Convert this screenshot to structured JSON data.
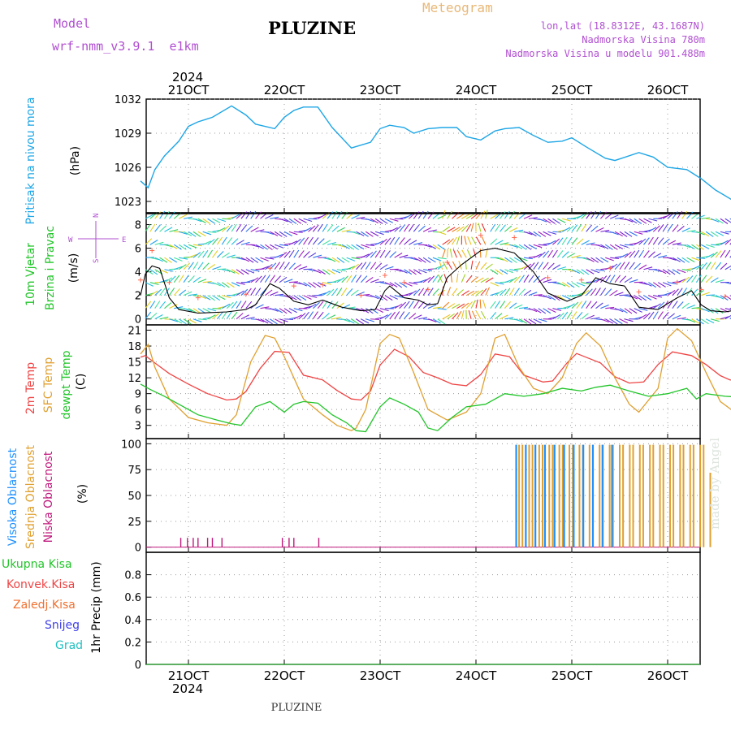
{
  "header": {
    "model_label": "Model",
    "model_name": "wrf-nmm_v3.9.1  e1km",
    "title": "PLUZINE",
    "product": "Meteogram",
    "lonlat": "lon,lat (18.8312E, 43.1687N)",
    "altitude": "Nadmorska Visina 780m",
    "model_altitude": "Nadmorska Visina u modelu 901.488m",
    "footer": "PLUZINE",
    "credit": "made by Angel"
  },
  "colors": {
    "pressure": "#1ea6e6",
    "t2m": "#ef4444",
    "sfc": "#e0a030",
    "dewpt": "#22c52a",
    "high_cloud": "#1e90ff",
    "mid_cloud": "#e0a030",
    "low_cloud": "#c0187c",
    "wind_speed": "#000000"
  },
  "time_axis": {
    "year_label": "2024",
    "top_labels": [
      "21OCT",
      "22OCT",
      "23OCT",
      "24OCT",
      "25OCT",
      "26OCT"
    ],
    "bottom_labels": [
      "21OCT",
      "22OCT",
      "23OCT",
      "24OCT",
      "25OCT",
      "26OCT"
    ]
  },
  "panel_labels": {
    "pressure": {
      "name": "Pritisak na nivou mora",
      "unit": "(hPa)"
    },
    "wind": {
      "line1": "10m Vjetar",
      "line2": "Brzina i Pravac",
      "unit": "(m/s)"
    },
    "compass": {
      "n": "N",
      "s": "S",
      "w": "W",
      "e": "E"
    },
    "temp": {
      "t2m": "2m Temp",
      "sfc": "SFC Temp",
      "dew": "dewpt Temp",
      "unit": "(C)"
    },
    "cloud": {
      "high": "Visoka Oblacnost",
      "mid": "Srednja Oblacnost",
      "low": "Niska Oblacnost",
      "unit": "(%)"
    },
    "precip": {
      "total": "Ukupna Kisa",
      "conv": "Konvek.Kisa",
      "frozen": "Zaledj.Kisa",
      "snow": "Snijeg",
      "grad": "Grad",
      "unit": "1hr Precip (mm)"
    }
  },
  "chart_data": [
    {
      "type": "line",
      "id": "pressure",
      "ylabel": "Pritisak na nivou mora (hPa)",
      "ylim": [
        1022,
        1032
      ],
      "yticks": [
        "1032",
        "1029",
        "1026",
        "1023"
      ],
      "grid": true,
      "series": [
        {
          "name": "Pritisak na nivou mora",
          "x": [
            0,
            0.08,
            0.15,
            0.25,
            0.4,
            0.5,
            0.6,
            0.75,
            0.95,
            1.1,
            1.2,
            1.4,
            1.5,
            1.6,
            1.7,
            1.85,
            2.0,
            2.2,
            2.4,
            2.5,
            2.6,
            2.75,
            2.85,
            3.0,
            3.15,
            3.3,
            3.4,
            3.55,
            3.7,
            3.8,
            3.95,
            4.1,
            4.25,
            4.4,
            4.5,
            4.65,
            4.85,
            4.95,
            5.2,
            5.35,
            5.5,
            5.7,
            5.85,
            6.0,
            6.2,
            6.35,
            6.45,
            6.6,
            6.7
          ],
          "y": [
            1024.8,
            1024.2,
            1025.8,
            1027.0,
            1028.3,
            1029.6,
            1030.0,
            1030.4,
            1031.4,
            1030.6,
            1029.8,
            1029.4,
            1030.4,
            1031.0,
            1031.3,
            1031.3,
            1029.5,
            1027.7,
            1028.2,
            1029.4,
            1029.7,
            1029.5,
            1029.0,
            1029.4,
            1029.5,
            1029.5,
            1028.7,
            1028.4,
            1029.2,
            1029.4,
            1029.5,
            1028.8,
            1028.2,
            1028.3,
            1028.6,
            1027.8,
            1026.8,
            1026.6,
            1027.3,
            1026.9,
            1026.0,
            1025.8,
            1025.0,
            1024.0,
            1023.0,
            1022.9,
            1023.6,
            1024.3,
            1024.6
          ]
        }
      ]
    },
    {
      "type": "line",
      "id": "wind",
      "ylabel": "10m Vjetar Brzina i Pravac (m/s)",
      "ylim": [
        -0.5,
        9
      ],
      "yticks": [
        "8",
        "6",
        "4",
        "2",
        "0"
      ],
      "grid": true,
      "series": [
        {
          "name": "wind speed",
          "x": [
            0,
            0.05,
            0.12,
            0.2,
            0.3,
            0.4,
            0.6,
            0.9,
            1.1,
            1.2,
            1.35,
            1.45,
            1.6,
            1.75,
            1.9,
            2.1,
            2.3,
            2.45,
            2.55,
            2.6,
            2.75,
            2.9,
            3.0,
            3.1,
            3.2,
            3.35,
            3.55,
            3.7,
            3.9,
            4.1,
            4.25,
            4.45,
            4.6,
            4.75,
            4.9,
            5.05,
            5.2,
            5.4,
            5.6,
            5.75,
            5.85,
            5.95,
            6.1,
            6.25,
            6.35,
            6.5,
            6.7
          ],
          "y": [
            2.0,
            3.8,
            4.5,
            4.3,
            1.8,
            0.8,
            0.5,
            0.6,
            0.8,
            1.2,
            3.0,
            2.6,
            1.5,
            1.2,
            1.6,
            1.0,
            0.7,
            0.8,
            2.4,
            2.8,
            1.8,
            1.6,
            1.2,
            1.3,
            3.5,
            4.6,
            5.8,
            6.0,
            5.6,
            4.0,
            2.2,
            1.5,
            2.0,
            3.5,
            3.0,
            2.8,
            1.0,
            0.8,
            1.8,
            2.4,
            1.2,
            0.7,
            0.6,
            0.8,
            1.5,
            2.2,
            2.8
          ]
        }
      ]
    },
    {
      "type": "line",
      "id": "temperature",
      "ylabel": "(C)",
      "ylim": [
        0.5,
        22
      ],
      "yticks": [
        "21",
        "18",
        "15",
        "12",
        "9",
        "6",
        "3"
      ],
      "grid": true,
      "series": [
        {
          "name": "2m Temp",
          "x": [
            0,
            0.05,
            0.15,
            0.3,
            0.5,
            0.7,
            0.9,
            1.0,
            1.1,
            1.25,
            1.4,
            1.55,
            1.7,
            1.9,
            2.05,
            2.2,
            2.3,
            2.4,
            2.5,
            2.65,
            2.8,
            2.95,
            3.1,
            3.25,
            3.4,
            3.55,
            3.7,
            3.85,
            4.0,
            4.2,
            4.3,
            4.45,
            4.55,
            4.8,
            4.95,
            5.1,
            5.25,
            5.4,
            5.55,
            5.75,
            5.9,
            6.05,
            6.15,
            6.3,
            6.5,
            6.7
          ],
          "y": [
            15.9,
            16.2,
            14.8,
            12.8,
            10.8,
            9.0,
            7.8,
            8.0,
            9.4,
            13.8,
            17.0,
            16.8,
            12.5,
            11.6,
            9.6,
            8.0,
            7.8,
            9.5,
            14.4,
            17.4,
            16.0,
            13.0,
            12.0,
            10.8,
            10.5,
            12.6,
            16.5,
            16.0,
            12.5,
            11.2,
            11.4,
            14.8,
            16.6,
            14.8,
            12.2,
            11.0,
            11.2,
            14.5,
            16.9,
            16.2,
            14.5,
            12.4,
            11.6,
            11.2,
            14.5,
            17.2
          ]
        },
        {
          "name": "SFC Temp",
          "x": [
            0,
            0.08,
            0.15,
            0.3,
            0.5,
            0.7,
            0.9,
            1.0,
            1.15,
            1.3,
            1.4,
            1.5,
            1.7,
            1.9,
            2.05,
            2.2,
            2.25,
            2.35,
            2.5,
            2.6,
            2.7,
            2.85,
            3.0,
            3.2,
            3.4,
            3.55,
            3.7,
            3.8,
            3.95,
            4.1,
            4.25,
            4.4,
            4.55,
            4.65,
            4.8,
            4.95,
            5.1,
            5.2,
            5.4,
            5.5,
            5.6,
            5.75,
            5.9,
            6.05,
            6.2,
            6.35,
            6.5,
            6.62,
            6.7
          ],
          "y": [
            16.5,
            18.3,
            14.0,
            8.0,
            4.5,
            3.5,
            3.0,
            5.0,
            15.0,
            20.0,
            19.5,
            16.0,
            8.0,
            5.0,
            3.0,
            2.0,
            2.5,
            6.0,
            18.5,
            20.2,
            19.5,
            13.0,
            6.0,
            4.0,
            5.5,
            9.0,
            19.5,
            20.2,
            14.0,
            10.0,
            9.0,
            12.0,
            18.5,
            20.5,
            18.0,
            12.0,
            7.0,
            5.5,
            10.0,
            19.5,
            21.3,
            19.0,
            13.0,
            7.5,
            5.5,
            9.5,
            19.5,
            21.0,
            20.6
          ]
        },
        {
          "name": "dewpt Temp",
          "x": [
            0,
            0.1,
            0.25,
            0.4,
            0.6,
            0.8,
            0.95,
            1.05,
            1.2,
            1.35,
            1.5,
            1.6,
            1.7,
            1.85,
            2.0,
            2.15,
            2.25,
            2.35,
            2.5,
            2.6,
            2.75,
            2.9,
            3.0,
            3.1,
            3.25,
            3.4,
            3.6,
            3.8,
            4.0,
            4.2,
            4.4,
            4.6,
            4.75,
            4.9,
            5.1,
            5.3,
            5.5,
            5.7,
            5.8,
            5.9,
            6.1,
            6.3,
            6.45,
            6.55,
            6.7
          ],
          "y": [
            10.8,
            9.8,
            8.5,
            7.0,
            5.0,
            4.0,
            3.3,
            3.0,
            6.5,
            7.5,
            5.5,
            7.0,
            7.5,
            7.2,
            5.0,
            3.5,
            2.0,
            1.8,
            6.5,
            8.2,
            7.0,
            5.5,
            2.5,
            2.0,
            4.5,
            6.5,
            7.0,
            9.0,
            8.5,
            9.0,
            10.0,
            9.5,
            10.2,
            10.6,
            9.5,
            8.5,
            9.0,
            10.0,
            8.0,
            9.0,
            8.5,
            8.3,
            10.5,
            10.8,
            9.5
          ]
        }
      ]
    },
    {
      "type": "bar",
      "id": "cloud",
      "ylabel": "(%)",
      "ylim": [
        -5,
        105
      ],
      "yticks": [
        "100",
        "75",
        "50",
        "25",
        "0"
      ],
      "grid": true,
      "series": [
        {
          "name": "Visoka Oblacnost",
          "x_range": [
            3.92,
            4.92
          ],
          "value": 99
        },
        {
          "name": "Srednja Oblacnost",
          "x_range": [
            3.95,
            5.95
          ],
          "value": 99
        },
        {
          "name": "Niska Oblacnost",
          "x": [
            0.42,
            0.49,
            0.55,
            0.6,
            0.7,
            0.75,
            0.85,
            1.48,
            1.55,
            1.6,
            1.86
          ],
          "y": [
            9,
            9,
            9,
            9,
            9,
            9,
            9,
            9,
            9,
            9,
            9
          ]
        }
      ]
    },
    {
      "type": "line",
      "id": "precip",
      "ylabel": "1hr Precip (mm)",
      "ylim": [
        0,
        1.0
      ],
      "yticks": [
        "0.8",
        "0.6",
        "0.4",
        "0.2",
        "0"
      ],
      "grid": true,
      "series": [
        {
          "name": "Ukupna Kisa",
          "x": [
            0,
            6.7
          ],
          "y": [
            0,
            0
          ]
        },
        {
          "name": "Konvek.Kisa",
          "x": [
            0,
            6.7
          ],
          "y": [
            0,
            0
          ]
        },
        {
          "name": "Zaledj.Kisa",
          "x": [
            0,
            6.7
          ],
          "y": [
            0,
            0
          ]
        },
        {
          "name": "Snijeg",
          "x": [
            0,
            6.7
          ],
          "y": [
            0,
            0
          ]
        },
        {
          "name": "Grad",
          "x": [
            0,
            6.7
          ],
          "y": [
            0,
            0
          ]
        }
      ]
    }
  ]
}
